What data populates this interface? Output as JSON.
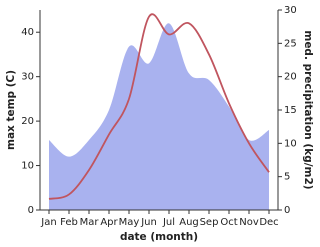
{
  "chart_data": {
    "type": "line",
    "x_label": "date (month)",
    "y_label": "max temp (C)",
    "y2_label": "med. precipitation (kg/m2)",
    "categories": [
      "Jan",
      "Feb",
      "Mar",
      "Apr",
      "May",
      "Jun",
      "Jul",
      "Aug",
      "Sep",
      "Oct",
      "Nov",
      "Dec"
    ],
    "series": [
      {
        "type": "area",
        "axis": "y2",
        "color": "#a9b2ef",
        "values": [
          10.5,
          8,
          10.5,
          15,
          24.5,
          22,
          28,
          20.5,
          19.5,
          15.5,
          10.5,
          12
        ]
      },
      {
        "type": "line",
        "axis": "y",
        "color": "#c0555f",
        "values": [
          2.5,
          3.5,
          9,
          17,
          25,
          43.5,
          39.5,
          42,
          35,
          24,
          15,
          8.5
        ]
      }
    ],
    "ylim": [
      0,
      45
    ],
    "yticks": [
      0,
      10,
      20,
      30,
      40
    ],
    "y2lim": [
      0,
      30
    ],
    "y2ticks": [
      0,
      5,
      10,
      15,
      20,
      25,
      30
    ]
  }
}
